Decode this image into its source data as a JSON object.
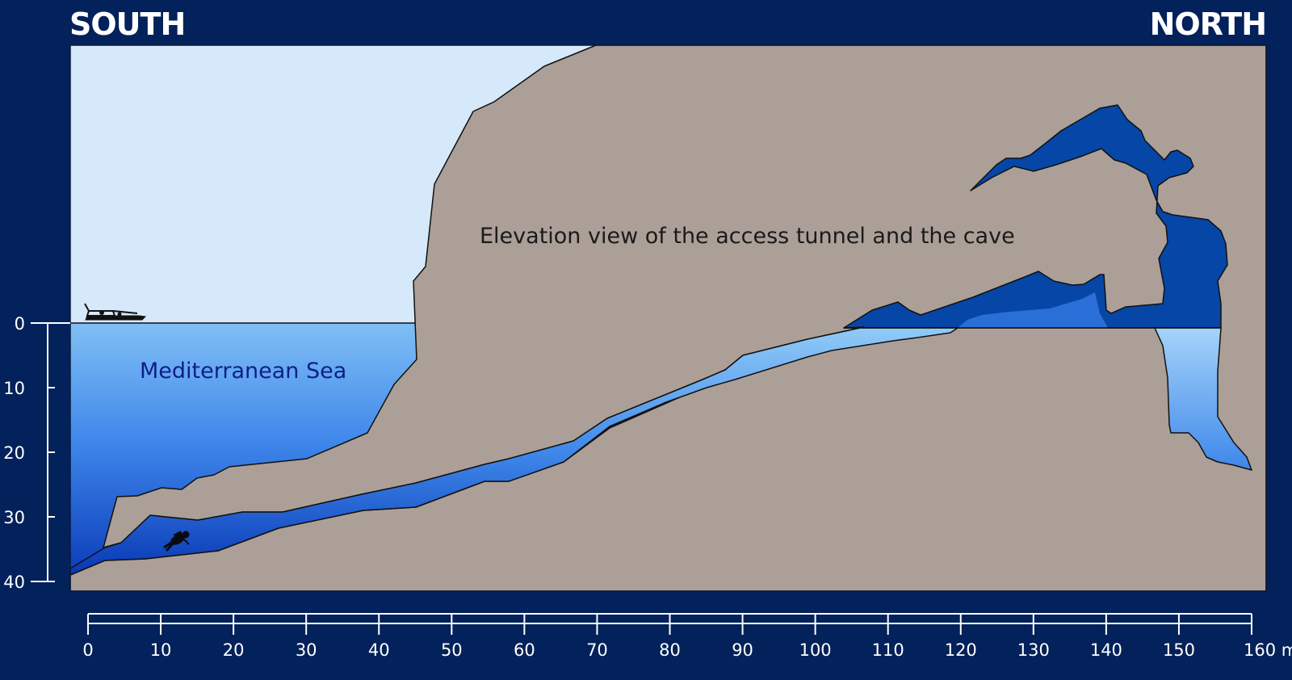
{
  "header": {
    "left_label": "SOUTH",
    "right_label": "NORTH"
  },
  "diagram": {
    "title": "Elevation view of the access tunnel and the cave",
    "sea_label": "Mediterranean Sea"
  },
  "depth_axis": {
    "ticks": [
      "0",
      "10",
      "20",
      "30",
      "40"
    ]
  },
  "distance_axis": {
    "ticks": [
      "0",
      "10",
      "20",
      "30",
      "40",
      "50",
      "60",
      "70",
      "80",
      "90",
      "100",
      "110",
      "120",
      "130",
      "140",
      "150",
      "160 m"
    ]
  },
  "icons": {
    "boat": "boat-icon",
    "diver": "diver-icon"
  },
  "colors": {
    "background": "#03215a",
    "sky": "#d5e9fb",
    "rock": "#ab9f98",
    "sea_top": "#80bff5",
    "sea_bottom": "#0533b3",
    "air_pocket": "#0546a6",
    "title_text": "#1a1a1a",
    "sea_text": "#0d1f8a"
  }
}
